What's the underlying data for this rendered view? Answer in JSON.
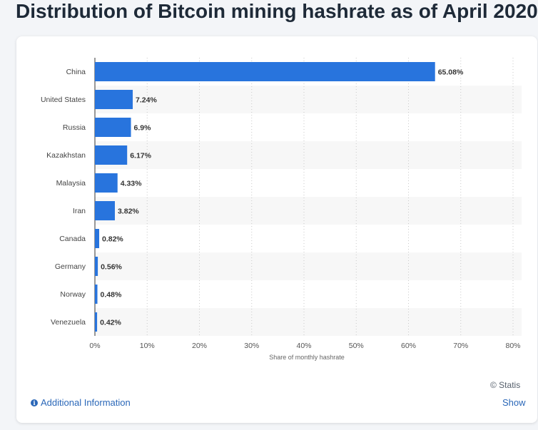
{
  "header": {
    "title": "Distribution of Bitcoin mining hashrate as of April 2020"
  },
  "footer": {
    "copyright": "© Statis",
    "additional_info_label": "Additional Information",
    "info_icon_glyph": "i",
    "show_label": "Show"
  },
  "chart_data": {
    "type": "bar",
    "orientation": "horizontal",
    "categories": [
      "China",
      "United States",
      "Russia",
      "Kazakhstan",
      "Malaysia",
      "Iran",
      "Canada",
      "Germany",
      "Norway",
      "Venezuela"
    ],
    "values": [
      65.08,
      7.24,
      6.9,
      6.17,
      4.33,
      3.82,
      0.82,
      0.56,
      0.48,
      0.42
    ],
    "data_labels": [
      "65.08%",
      "7.24%",
      "6.9%",
      "6.17%",
      "4.33%",
      "3.82%",
      "0.82%",
      "0.56%",
      "0.48%",
      "0.42%"
    ],
    "title": "",
    "xlabel": "Share of monthly hashrate",
    "ylabel": "",
    "xlim": [
      0,
      80
    ],
    "x_ticks": [
      0,
      10,
      20,
      30,
      40,
      50,
      60,
      70,
      80
    ],
    "x_tick_labels": [
      "0%",
      "10%",
      "20%",
      "30%",
      "40%",
      "50%",
      "60%",
      "70%",
      "80%"
    ],
    "grid": "vertical dotted",
    "legend": "none",
    "bar_color": "#2874dd",
    "stripe_color": "#f7f7f7"
  }
}
